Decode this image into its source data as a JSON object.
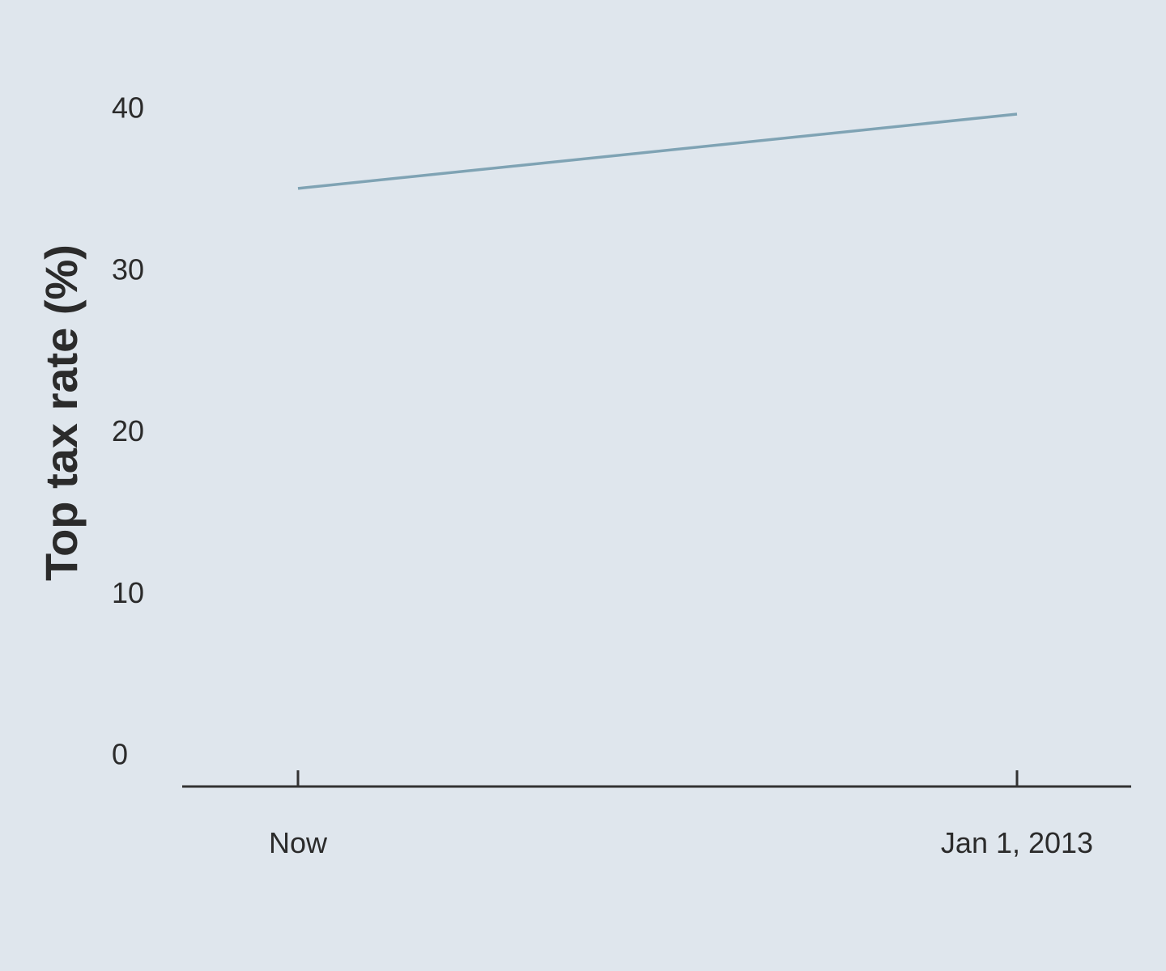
{
  "chart_data": {
    "type": "line",
    "title": "",
    "xlabel": "",
    "ylabel": "Top tax rate (%)",
    "categories": [
      "Now",
      "Jan 1, 2013"
    ],
    "series": [
      {
        "values": [
          35,
          39.6
        ]
      }
    ],
    "ylim": [
      0,
      40
    ],
    "yticks": [
      0,
      10,
      20,
      30,
      40
    ],
    "grid": false,
    "legend": "none",
    "colors": {
      "background": "#dfe6ed",
      "line": "#7fa3b4",
      "axis": "#333333",
      "text": "#2b2b2b"
    }
  }
}
